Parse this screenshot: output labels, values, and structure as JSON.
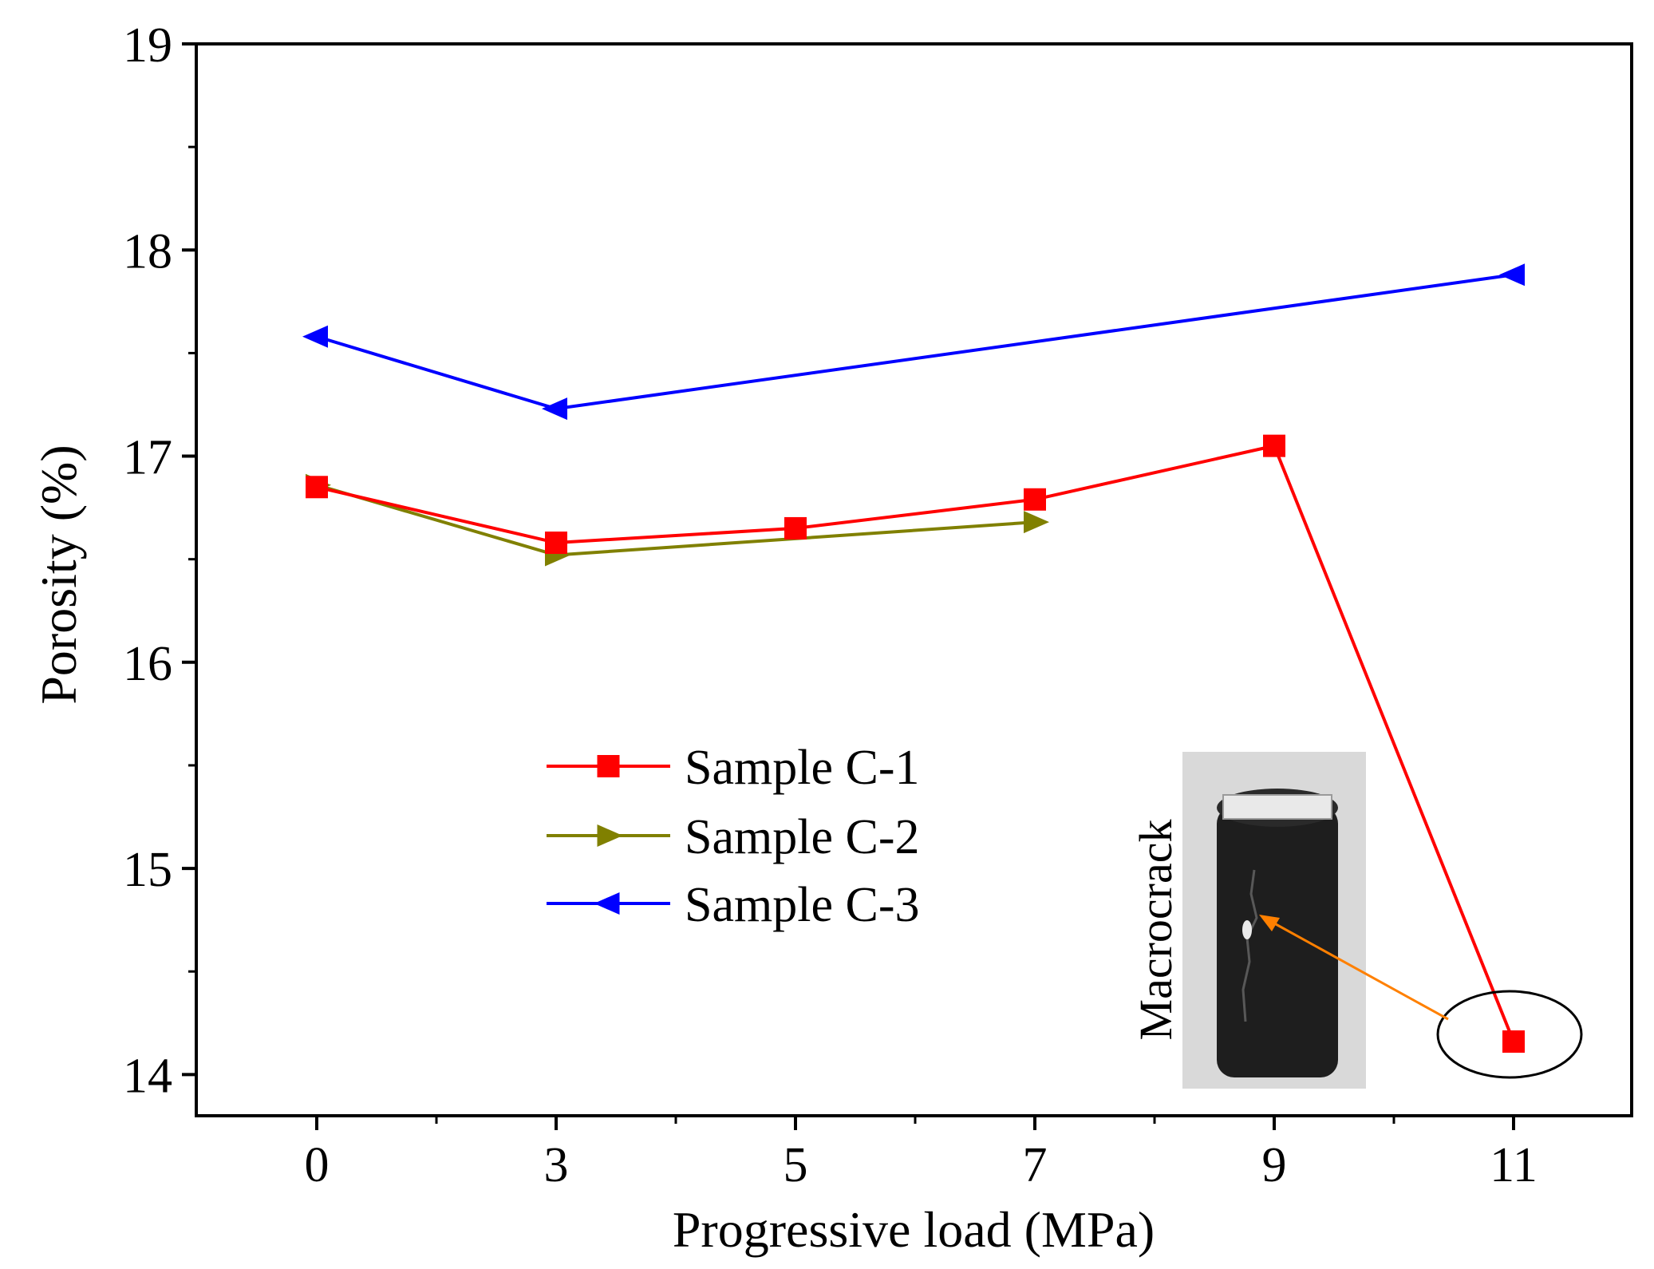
{
  "chart_data": {
    "type": "line",
    "xlabel": "Progressive load (MPa)",
    "ylabel": "Porosity (%)",
    "categories": [
      "0",
      "3",
      "5",
      "7",
      "9",
      "11"
    ],
    "ylim": [
      13.8,
      19
    ],
    "yticks": [
      14,
      15,
      16,
      17,
      18,
      19
    ],
    "grid": false,
    "legend_position": "center-left",
    "series": [
      {
        "name": "Sample C-1",
        "marker": "square",
        "color": "#ff0000",
        "values": [
          16.85,
          16.58,
          16.65,
          16.79,
          17.05,
          14.16
        ]
      },
      {
        "name": "Sample C-2",
        "marker": "triangle-right",
        "color": "#808000",
        "values": [
          16.86,
          16.52,
          null,
          16.68,
          null,
          null
        ]
      },
      {
        "name": "Sample C-3",
        "marker": "triangle-left",
        "color": "#0000ff",
        "values": [
          17.58,
          17.23,
          null,
          null,
          null,
          17.88
        ]
      }
    ],
    "annotations": [
      {
        "text": "Macrocrack",
        "target": "Sample C-1 at 11 MPa",
        "arrow_color": "#ff8000",
        "inset_image": "cracked cylindrical coal sample"
      }
    ]
  }
}
